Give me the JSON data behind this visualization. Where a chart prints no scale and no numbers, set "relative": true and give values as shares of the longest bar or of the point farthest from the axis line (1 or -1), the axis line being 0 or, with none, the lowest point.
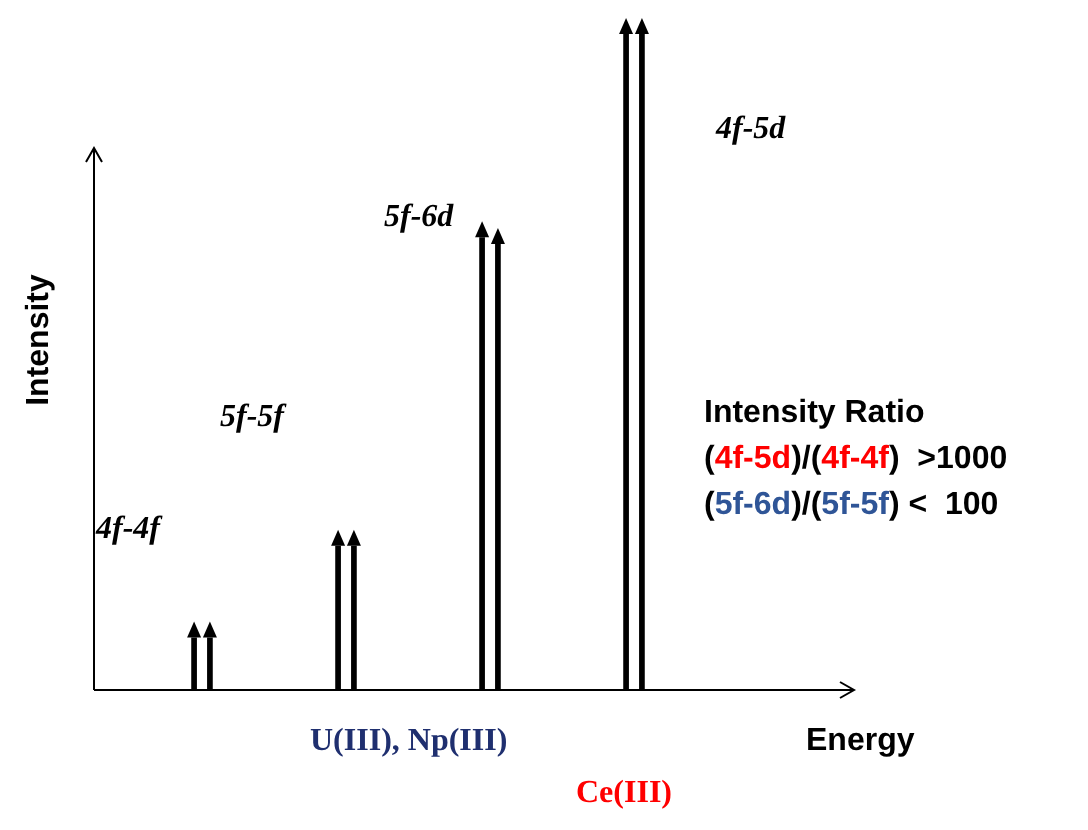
{
  "chart_data": {
    "type": "bar",
    "relative": true,
    "ylabel": "Intensity",
    "xlabel": "Energy",
    "categories": [
      null,
      null,
      null,
      null
    ],
    "series": [
      {
        "color": "#000000",
        "values": [
          0.08,
          0.22,
          0.69,
          1
        ]
      },
      {
        "color": "#000000",
        "values": [
          0.08,
          0.22,
          0.68,
          1
        ]
      }
    ],
    "legend": false,
    "annotations": [
      "4f-4f",
      "5f-5f",
      "5f-6d",
      "4f-5d",
      "U(III), Np(III)",
      "Ce(III)",
      "Intensity Ratio",
      "(4f-5d)/(4f-4f)  >1000",
      "(5f-6d)/(5f-5f) <  100"
    ]
  }
}
